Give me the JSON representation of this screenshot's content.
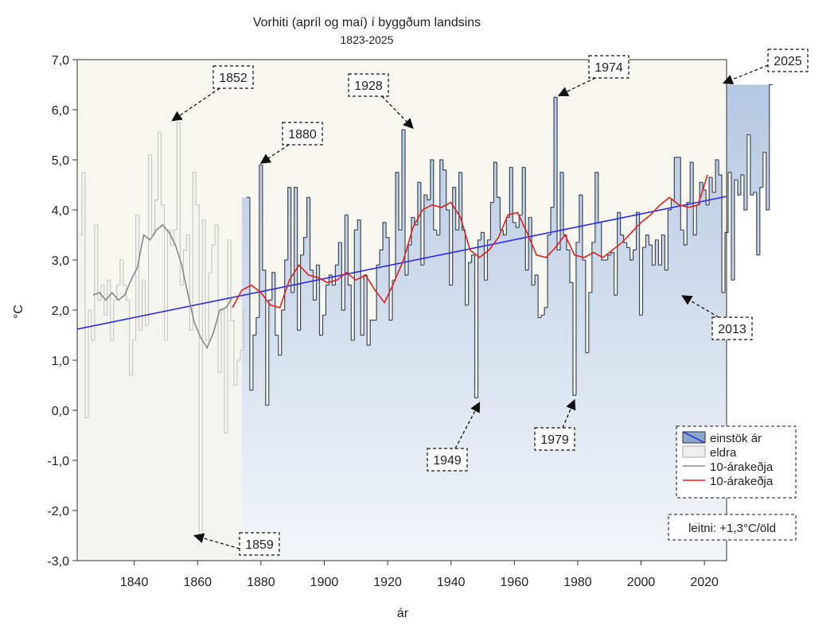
{
  "chart_data": {
    "type": "bar",
    "title": "Vorhiti (apríl og maí) í byggðum landsins",
    "subtitle": "1823-2025",
    "xlabel": "ár",
    "ylabel": "°C",
    "xlim": [
      1822,
      2027
    ],
    "ylim": [
      -3.0,
      7.0
    ],
    "x_ticks": [
      1840,
      1860,
      1880,
      1900,
      1920,
      1940,
      1960,
      1980,
      2000,
      2020
    ],
    "y_ticks": [
      -3,
      -2,
      -1,
      0,
      1,
      2,
      3,
      4,
      5,
      6,
      7
    ],
    "grid": false,
    "legend_position": "bottom-right",
    "colors": {
      "old_fill": "#f4f4f1",
      "old_line": "#c8c8c8",
      "new_line": "#3e4a5a",
      "gradient_top": "#b5c8e2",
      "gradient_bottom": "#f3f5f9",
      "upper_bg": "#f7f7ef",
      "trend": "#2a2ae6",
      "ma_old": "#888888",
      "ma_new": "#e02020"
    },
    "split_year": 1874,
    "series": [
      {
        "name": "eldra",
        "start_year": 1823,
        "values": [
          3.5,
          4.75,
          -0.15,
          2.0,
          1.4,
          3.7,
          2.2,
          2.5,
          1.9,
          2.6,
          1.4,
          2.2,
          2.5,
          3.0,
          2.5,
          2.2,
          0.7,
          1.4,
          3.9,
          1.6,
          2.6,
          1.7,
          5.1,
          3.5,
          4.2,
          5.55,
          4.1,
          1.4,
          3.6,
          3.3,
          3.6,
          5.75,
          2.5,
          3.2,
          3.5,
          1.6,
          4.75,
          4.1,
          -2.5,
          3.8,
          1.4,
          2.75,
          3.3,
          3.7,
          0.75,
          2.0,
          -0.45,
          3.4,
          1.8,
          0.5,
          1.0,
          1.2,
          2.0
        ]
      },
      {
        "name": "einstök ár",
        "start_year": 1876,
        "values": [
          4.25,
          0.4,
          1.5,
          1.85,
          4.9,
          2.8,
          0.1,
          2.2,
          2.75,
          1.5,
          1.1,
          2.0,
          3.0,
          4.45,
          2.35,
          4.45,
          1.6,
          3.1,
          3.45,
          4.25,
          2.8,
          2.2,
          2.9,
          1.5,
          1.9,
          2.5,
          2.7,
          2.5,
          2.9,
          3.35,
          2.0,
          3.9,
          2.5,
          1.4,
          3.6,
          3.8,
          1.5,
          2.7,
          1.3,
          1.8,
          1.8,
          2.9,
          3.2,
          3.75,
          3.45,
          1.8,
          2.6,
          4.75,
          3.6,
          5.6,
          2.7,
          3.3,
          3.85,
          3.7,
          4.55,
          2.9,
          4.3,
          4.2,
          5.0,
          3.6,
          3.5,
          5.0,
          4.8,
          4.0,
          2.5,
          4.45,
          3.6,
          4.75,
          3.6,
          2.1,
          2.95,
          3.1,
          0.25,
          3.4,
          3.55,
          2.6,
          3.4,
          4.15,
          4.95,
          4.25,
          3.6,
          3.5,
          3.85,
          4.85,
          3.75,
          3.65,
          3.9,
          4.85,
          2.8,
          3.85,
          2.5,
          2.7,
          1.85,
          1.9,
          2.05,
          3.5,
          4.05,
          6.25,
          3.2,
          4.75,
          3.5,
          3.2,
          2.55,
          0.3,
          3.35,
          4.3,
          3.0,
          1.15,
          2.35,
          3.35,
          4.75,
          3.75,
          3.0,
          3.0,
          3.1,
          3.15,
          2.3,
          3.95,
          3.5,
          3.35,
          3.25,
          3.0,
          3.2,
          3.95,
          1.9,
          3.25,
          3.5,
          3.3,
          2.9,
          3.4,
          2.9,
          3.5,
          2.8,
          4.0,
          4.2,
          5.05,
          5.05,
          3.6,
          3.3,
          4.15,
          4.95,
          3.5,
          4.1,
          4.55,
          4.4,
          4.1,
          4.65,
          4.35,
          5.0,
          4.7,
          2.35,
          3.55,
          4.75,
          2.6,
          4.6,
          4.3,
          4.7,
          4.0,
          5.5,
          4.3,
          4.35,
          3.1,
          4.45,
          5.15,
          4.0,
          6.5
        ]
      }
    ],
    "moving_average_old": {
      "name": "10-árakeðja",
      "x": [
        1827,
        1829,
        1831,
        1833,
        1835,
        1837,
        1839,
        1841,
        1843,
        1845,
        1847,
        1849,
        1851,
        1853,
        1855,
        1857,
        1859,
        1861,
        1863,
        1865,
        1867,
        1869,
        1871
      ],
      "y": [
        2.3,
        2.35,
        2.2,
        2.35,
        2.2,
        2.3,
        2.6,
        2.85,
        3.5,
        3.4,
        3.6,
        3.7,
        3.55,
        3.3,
        2.9,
        2.3,
        1.75,
        1.45,
        1.25,
        1.55,
        2.0,
        2.05,
        2.25
      ]
    },
    "moving_average_new": {
      "name": "10-árakeðja",
      "x": [
        1871,
        1874,
        1877,
        1880,
        1883,
        1886,
        1889,
        1892,
        1895,
        1898,
        1901,
        1904,
        1907,
        1910,
        1913,
        1916,
        1919,
        1922,
        1925,
        1928,
        1931,
        1934,
        1937,
        1940,
        1943,
        1946,
        1949,
        1952,
        1955,
        1958,
        1961,
        1964,
        1967,
        1970,
        1973,
        1976,
        1979,
        1982,
        1985,
        1988,
        1991,
        1994,
        1997,
        2000,
        2003,
        2006,
        2009,
        2012,
        2015,
        2018,
        2021
      ],
      "y": [
        2.05,
        2.4,
        2.5,
        2.35,
        2.1,
        2.05,
        2.6,
        2.9,
        2.7,
        2.65,
        2.55,
        2.6,
        2.75,
        2.6,
        2.7,
        2.4,
        2.15,
        2.55,
        3.0,
        3.65,
        4.0,
        4.1,
        4.05,
        4.15,
        3.85,
        3.2,
        3.05,
        3.2,
        3.45,
        3.9,
        3.95,
        3.55,
        3.1,
        3.05,
        3.25,
        3.5,
        3.1,
        3.05,
        3.15,
        3.05,
        3.2,
        3.35,
        3.55,
        3.75,
        3.9,
        4.1,
        4.25,
        4.1,
        4.05,
        4.1,
        4.7
      ]
    },
    "trend": {
      "name": "leitni",
      "x": [
        1822,
        2027
      ],
      "y": [
        1.62,
        4.27
      ]
    },
    "legend": [
      {
        "label": "einstök ár",
        "kind": "box-blue"
      },
      {
        "label": "eldra",
        "kind": "box-gray"
      },
      {
        "label": "10-árakeðja",
        "kind": "line-gray"
      },
      {
        "label": "10-árakeðja",
        "kind": "line-red"
      }
    ],
    "trend_label": "leitni: +1,3°C/öld",
    "annotations": [
      {
        "label": "1852",
        "year": 1852,
        "value": 5.75
      },
      {
        "label": "1880",
        "year": 1880,
        "value": 4.9
      },
      {
        "label": "1928",
        "year": 1928,
        "value": 5.6
      },
      {
        "label": "1974",
        "year": 1974,
        "value": 6.25
      },
      {
        "label": "2025",
        "year": 2025,
        "value": 6.5
      },
      {
        "label": "2013",
        "year": 2013,
        "value": 2.35
      },
      {
        "label": "1949",
        "year": 1949,
        "value": 0.25
      },
      {
        "label": "1979",
        "year": 1979,
        "value": 0.3
      },
      {
        "label": "1859",
        "year": 1859,
        "value": -2.5
      }
    ]
  }
}
